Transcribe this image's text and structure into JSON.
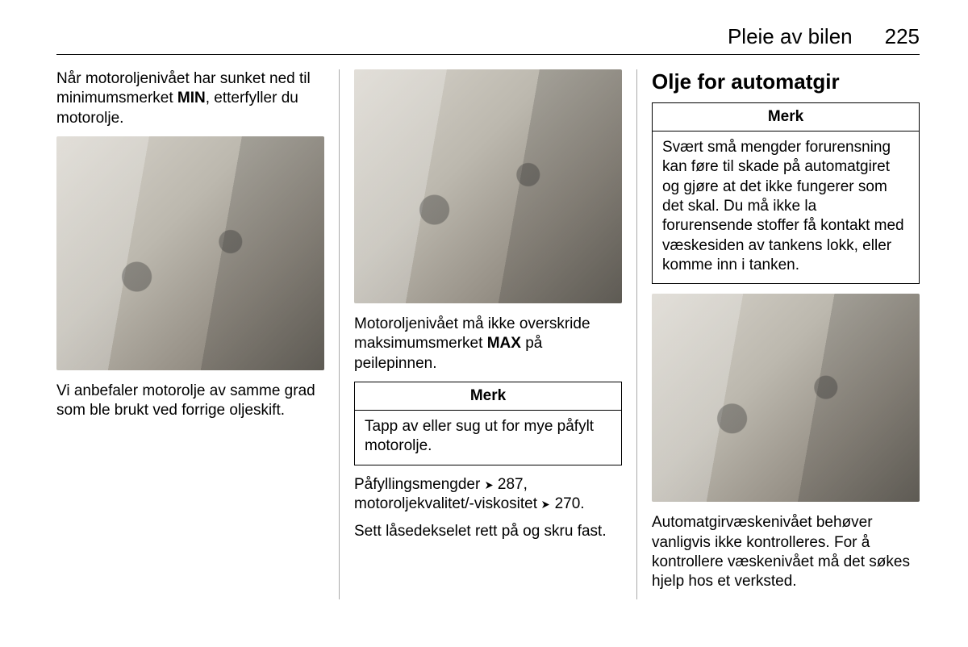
{
  "header": {
    "title": "Pleie av bilen",
    "page_number": "225"
  },
  "col1": {
    "p1_a": "Når motoroljenivået har sunket ned til minimumsmerket ",
    "p1_b": "MIN",
    "p1_c": ", etterfyller du motorolje.",
    "p2": "Vi anbefaler motorolje av samme grad som ble brukt ved forrige oljeskift."
  },
  "col2": {
    "p1_a": "Motoroljenivået må ikke overskride maksimumsmerket ",
    "p1_b": "MAX",
    "p1_c": " på peilepinnen.",
    "note_title": "Merk",
    "note_body": "Tapp av eller sug ut for mye påfylt motorolje.",
    "p2_a": "Påfyllingsmengder ",
    "p2_ref1": "287",
    "p2_b": ", motoroljekvalitet/-viskositet ",
    "p2_ref2": "270",
    "p2_c": ".",
    "p3": "Sett låsedekselet rett på og skru fast."
  },
  "col3": {
    "heading": "Olje for automatgir",
    "note_title": "Merk",
    "note_body": "Svært små mengder forurensning kan føre til skade på automatgiret og gjøre at det ikke fungerer som det skal. Du må ikke la forurensende stoffer få kontakt med væskesiden av tankens lokk, eller komme inn i tanken.",
    "p1": "Automatgirvæskenivået behøver vanligvis ikke kontrolleres. For å kontrollere væskenivået må det søkes hjelp hos et verksted."
  },
  "style": {
    "body_fontsize": 19,
    "heading_fontsize": 26,
    "text_color": "#000000",
    "border_color": "#000000",
    "divider_color": "#aaaaaa"
  }
}
